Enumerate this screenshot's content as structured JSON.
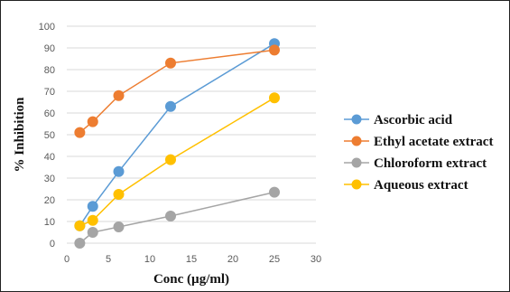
{
  "chart_data": {
    "type": "line",
    "xlabel": "Conc (µg/ml)",
    "ylabel": "% Inhibition",
    "xlim": [
      0,
      30
    ],
    "ylim": [
      0,
      100
    ],
    "xticks": [
      0,
      5,
      10,
      15,
      20,
      25,
      30
    ],
    "yticks": [
      0,
      10,
      20,
      30,
      40,
      50,
      60,
      70,
      80,
      90,
      100
    ],
    "grid": "horizontal",
    "legend_position": "right",
    "x": [
      1.5625,
      3.125,
      6.25,
      12.5,
      25
    ],
    "series": [
      {
        "name": "Ascorbic acid",
        "color": "#5b9bd5",
        "values": [
          8,
          17,
          33,
          63,
          92
        ]
      },
      {
        "name": "Ethyl acetate extract",
        "color": "#ed7d31",
        "values": [
          51,
          56,
          68,
          83,
          89
        ]
      },
      {
        "name": "Chloroform extract",
        "color": "#a5a5a5",
        "values": [
          0,
          5,
          7.5,
          12.5,
          23.5
        ]
      },
      {
        "name": "Aqueous extract",
        "color": "#ffc000",
        "values": [
          8,
          10.5,
          22.5,
          38.5,
          67
        ]
      }
    ]
  }
}
